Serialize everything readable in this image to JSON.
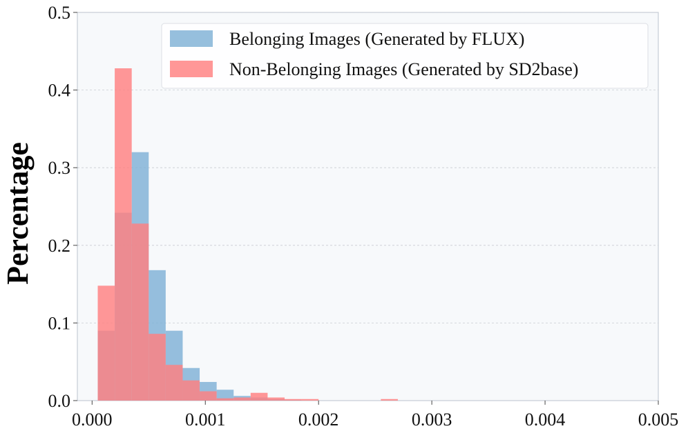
{
  "chart_data": {
    "type": "bar",
    "title": "",
    "xlabel": "",
    "ylabel": "Percentage",
    "xlim": [
      -0.00013,
      0.005
    ],
    "ylim": [
      0,
      0.5
    ],
    "xticks": [
      "0.000",
      "0.001",
      "0.002",
      "0.003",
      "0.004",
      "0.005"
    ],
    "xtick_values": [
      0,
      0.001,
      0.002,
      0.003,
      0.004,
      0.005
    ],
    "yticks": [
      "0.0",
      "0.1",
      "0.2",
      "0.3",
      "0.4",
      "0.5"
    ],
    "ytick_values": [
      0,
      0.1,
      0.2,
      0.3,
      0.4,
      0.5
    ],
    "grid": "horizontal-dashed",
    "legend_position": "top-right",
    "series": [
      {
        "name": "Belonging Images (Generated by FLUX)",
        "color": "#7fb1d6",
        "bin_width": 0.00015,
        "bins": [
          {
            "x": 5e-05,
            "value": 0.09
          },
          {
            "x": 0.0002,
            "value": 0.242
          },
          {
            "x": 0.00035,
            "value": 0.32
          },
          {
            "x": 0.0005,
            "value": 0.168
          },
          {
            "x": 0.00065,
            "value": 0.09
          },
          {
            "x": 0.0008,
            "value": 0.042
          },
          {
            "x": 0.00095,
            "value": 0.024
          },
          {
            "x": 0.0011,
            "value": 0.014
          },
          {
            "x": 0.00125,
            "value": 0.006
          },
          {
            "x": 0.0014,
            "value": 0.004
          },
          {
            "x": 0.00155,
            "value": 0.002
          },
          {
            "x": 0.0017,
            "value": 0.001
          }
        ]
      },
      {
        "name": "Non-Belonging Images (Generated by SD2base)",
        "color": "#ff8080",
        "bin_width": 0.00015,
        "bins": [
          {
            "x": 5e-05,
            "value": 0.148
          },
          {
            "x": 0.0002,
            "value": 0.428
          },
          {
            "x": 0.00035,
            "value": 0.228
          },
          {
            "x": 0.0005,
            "value": 0.086
          },
          {
            "x": 0.00065,
            "value": 0.046
          },
          {
            "x": 0.0008,
            "value": 0.026
          },
          {
            "x": 0.00095,
            "value": 0.012
          },
          {
            "x": 0.0011,
            "value": 0.003
          },
          {
            "x": 0.00125,
            "value": 0.004
          },
          {
            "x": 0.0014,
            "value": 0.01
          },
          {
            "x": 0.00155,
            "value": 0.004
          },
          {
            "x": 0.0017,
            "value": 0.002
          },
          {
            "x": 0.00185,
            "value": 0.002
          },
          {
            "x": 0.00255,
            "value": 0.002
          }
        ]
      }
    ]
  }
}
